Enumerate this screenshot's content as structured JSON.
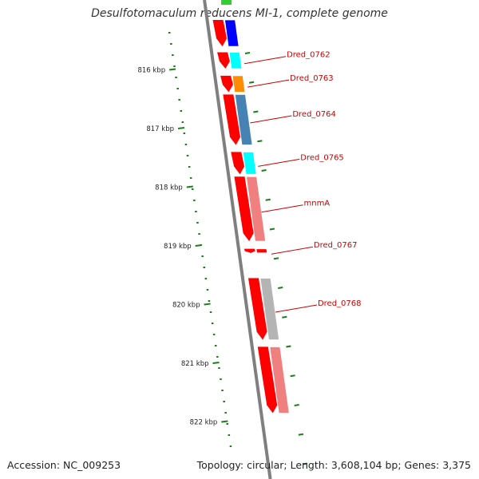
{
  "title": "Desulfotomaculum reducens MI-1, complete genome",
  "footer": {
    "accession": "Accession: NC_009253",
    "summary": "Topology: circular; Length: 3,608,104 bp; Genes: 3,375"
  },
  "colors": {
    "backbone": "#7f7f7f",
    "cds": "#ff0000",
    "tick": "#1a7f1a",
    "label": "#cc0000"
  },
  "scale": {
    "unit": "kbp",
    "ticks": [
      {
        "label": "816 kbp",
        "kbp": 816
      },
      {
        "label": "817 kbp",
        "kbp": 817
      },
      {
        "label": "818 kbp",
        "kbp": 818
      },
      {
        "label": "819 kbp",
        "kbp": 819
      },
      {
        "label": "820 kbp",
        "kbp": 820
      },
      {
        "label": "821 kbp",
        "kbp": 821
      },
      {
        "label": "822 kbp",
        "kbp": 822
      }
    ]
  },
  "genes": [
    {
      "name": "",
      "start_kbp": 815.15,
      "end_kbp": 815.6,
      "color": "#0000ff"
    },
    {
      "name": "Dred_0762",
      "start_kbp": 815.7,
      "end_kbp": 815.98,
      "color": "#00ffff"
    },
    {
      "name": "Dred_0763",
      "start_kbp": 816.1,
      "end_kbp": 816.38,
      "color": "#ff8c00"
    },
    {
      "name": "Dred_0764",
      "start_kbp": 816.42,
      "end_kbp": 817.28,
      "color": "#4682b4"
    },
    {
      "name": "Dred_0765",
      "start_kbp": 817.4,
      "end_kbp": 817.78,
      "color": "#00ffff"
    },
    {
      "name": "mnmA",
      "start_kbp": 817.82,
      "end_kbp": 818.92,
      "color": "#f08080"
    },
    {
      "name": "Dred_0767",
      "start_kbp": 819.05,
      "end_kbp": 819.12,
      "color": "#ff0000"
    },
    {
      "name": "Dred_0768",
      "start_kbp": 819.55,
      "end_kbp": 820.6,
      "color": "#b4b4b4"
    },
    {
      "name": "",
      "start_kbp": 820.72,
      "end_kbp": 821.85,
      "color": "#f08080"
    }
  ]
}
